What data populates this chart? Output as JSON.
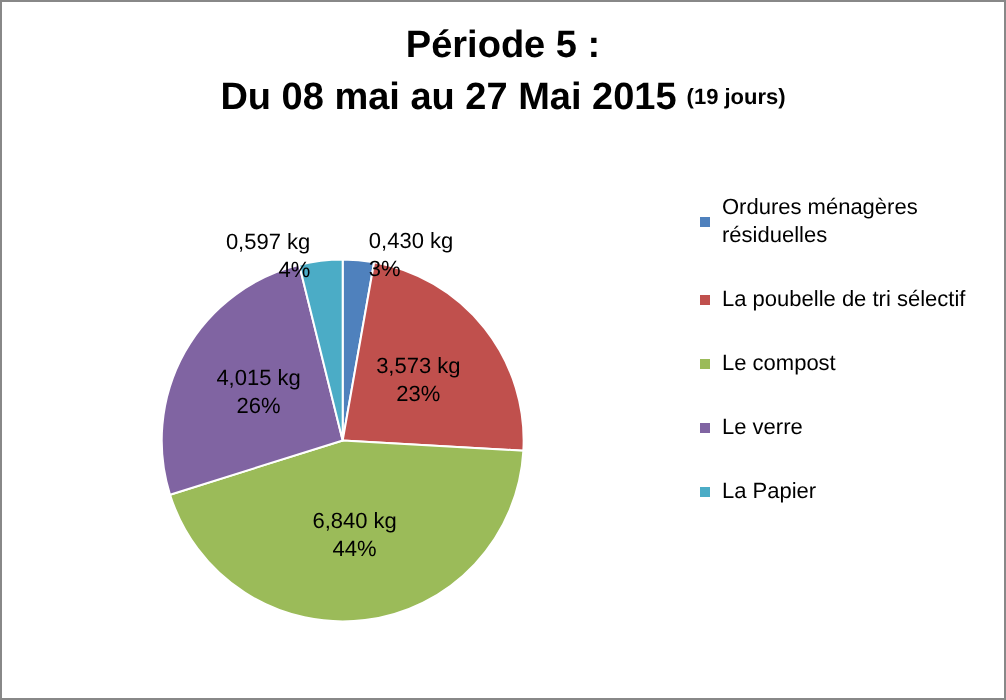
{
  "chart_data": {
    "type": "pie",
    "title": "Période 5 :\nDu 08 mai au 27 Mai 2015",
    "subtitle": "(19 jours)",
    "categories": [
      "Ordures ménagères résiduelles",
      "La poubelle de tri sélectif",
      "Le compost",
      "Le verre",
      "La Papier"
    ],
    "values": [
      0.43,
      3.573,
      6.84,
      4.015,
      0.597
    ],
    "colors": [
      "#4f81bd",
      "#c0504d",
      "#9bbb59",
      "#8064a2",
      "#4bacc6"
    ],
    "value_labels": [
      "0,430 kg\n3%",
      "3,573 kg\n23%",
      "6,840 kg\n44%",
      "4,015 kg\n26%",
      "0,597 kg\n4%"
    ],
    "legend": "right"
  }
}
